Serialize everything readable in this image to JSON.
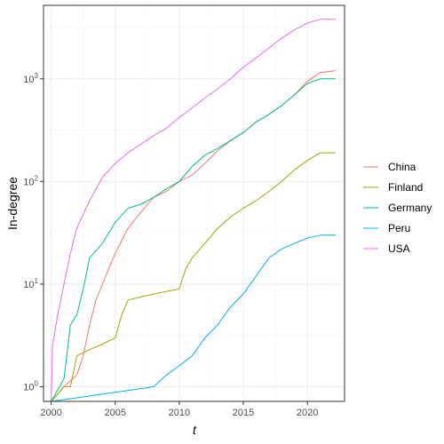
{
  "chart_data": {
    "type": "line",
    "title": "",
    "xlabel": "t",
    "ylabel": "In-degree",
    "y_scale": "log10",
    "xlim": [
      1999.4,
      2022.9
    ],
    "ylim": [
      0.72,
      5200
    ],
    "grid": true,
    "legend_position": "right",
    "x_ticks": [
      {
        "value": 2000,
        "label": "2000"
      },
      {
        "value": 2005,
        "label": "2005"
      },
      {
        "value": 2010,
        "label": "2010"
      },
      {
        "value": 2015,
        "label": "2015"
      },
      {
        "value": 2020,
        "label": "2020"
      }
    ],
    "y_ticks": [
      {
        "value": 1,
        "base": "10",
        "exp": "0"
      },
      {
        "value": 10,
        "base": "10",
        "exp": "1"
      },
      {
        "value": 100,
        "base": "10",
        "exp": "2"
      },
      {
        "value": 1000,
        "base": "10",
        "exp": "3"
      }
    ],
    "series": [
      {
        "name": "China",
        "color": "#F8766D",
        "x": [
          2000,
          2001,
          2002,
          2002.5,
          2003,
          2003.5,
          2004,
          2005,
          2006,
          2007,
          2008,
          2009,
          2010,
          2011,
          2012,
          2013,
          2014,
          2015,
          2016,
          2017,
          2018,
          2019,
          2020,
          2021,
          2022.2
        ],
        "y": [
          0.72,
          1.0,
          1.3,
          2.0,
          4.0,
          7.0,
          10,
          20,
          35,
          50,
          70,
          80,
          100,
          115,
          150,
          200,
          250,
          300,
          380,
          450,
          550,
          700,
          950,
          1150,
          1200
        ]
      },
      {
        "name": "Finland",
        "color": "#A3A500",
        "x": [
          2000,
          2001,
          2001.5,
          2002,
          2003,
          2004,
          2005,
          2005.5,
          2006,
          2007,
          2008,
          2009,
          2010,
          2010.5,
          2011,
          2012,
          2013,
          2014,
          2015,
          2016,
          2017,
          2018,
          2019,
          2020,
          2021,
          2022.2
        ],
        "y": [
          0.72,
          1.0,
          1.0,
          2.0,
          2.3,
          2.6,
          3.0,
          5.0,
          7.0,
          7.5,
          8.0,
          8.5,
          9.0,
          14,
          18,
          25,
          35,
          45,
          55,
          65,
          80,
          100,
          130,
          160,
          190,
          190
        ]
      },
      {
        "name": "Germany",
        "color": "#00BF7D",
        "x": [
          2000,
          2001,
          2001.5,
          2002,
          2002.5,
          2003,
          2004,
          2005,
          2006,
          2007,
          2008,
          2009,
          2010,
          2011,
          2012,
          2013,
          2014,
          2015,
          2016,
          2017,
          2018,
          2019,
          2020,
          2021,
          2022.2
        ],
        "y": [
          0.72,
          1.2,
          4.0,
          5.0,
          9.0,
          18,
          25,
          40,
          55,
          60,
          70,
          85,
          100,
          140,
          180,
          210,
          250,
          300,
          380,
          450,
          550,
          700,
          900,
          1000,
          1000
        ]
      },
      {
        "name": "Peru",
        "color": "#00B0F6",
        "x": [
          2000,
          2002,
          2004,
          2006,
          2008,
          2009,
          2010,
          2011,
          2012,
          2013,
          2014,
          2015,
          2016,
          2017,
          2018,
          2019,
          2020,
          2021,
          2022.2
        ],
        "y": [
          0.72,
          0.78,
          0.85,
          0.92,
          1.0,
          1.3,
          1.6,
          2.0,
          3.0,
          4.0,
          6.0,
          8.0,
          12,
          18,
          22,
          25,
          28,
          30,
          30
        ]
      },
      {
        "name": "USA",
        "color": "#E76BF3",
        "x": [
          2000,
          2000.1,
          2000.5,
          2001,
          2001.5,
          2002,
          2003,
          2004,
          2005,
          2006,
          2007,
          2008,
          2009,
          2010,
          2011,
          2012,
          2013,
          2014,
          2015,
          2016,
          2017,
          2018,
          2019,
          2020,
          2021,
          2022.2
        ],
        "y": [
          0.72,
          2.5,
          5.0,
          10,
          20,
          35,
          65,
          110,
          150,
          190,
          230,
          280,
          330,
          420,
          520,
          650,
          800,
          1000,
          1300,
          1600,
          2000,
          2500,
          3000,
          3500,
          3800,
          3800
        ]
      }
    ]
  }
}
